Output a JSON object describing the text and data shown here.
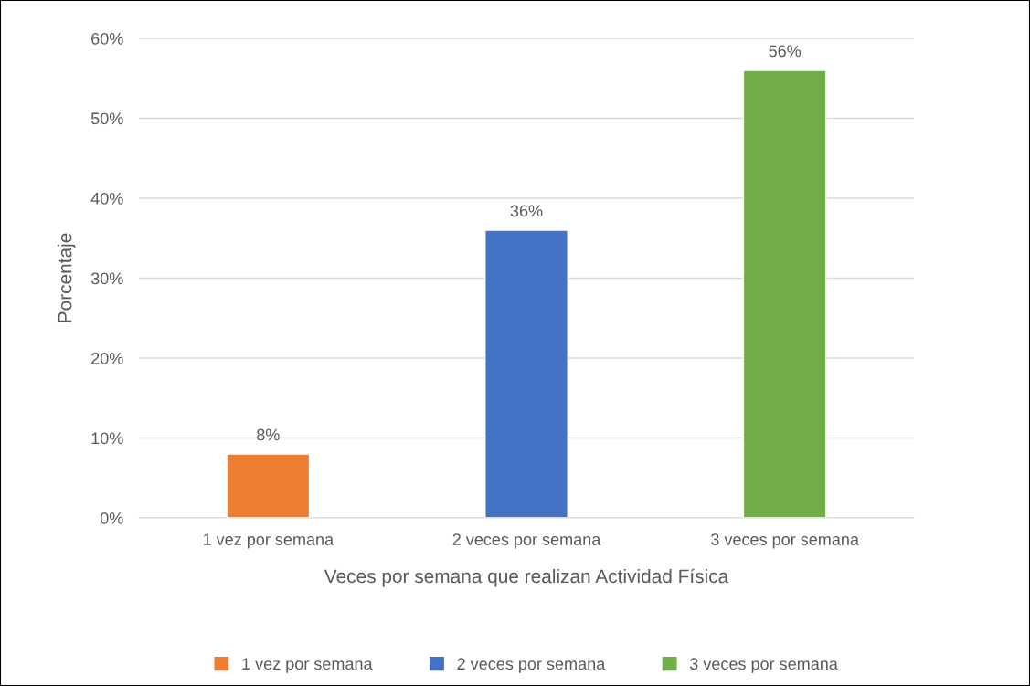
{
  "chart_data": {
    "type": "bar",
    "xlabel": "Veces por semana que realizan Actividad Física",
    "ylabel": "Porcentaje",
    "categories": [
      "1 vez por semana",
      "2 veces por semana",
      "3 veces por semana"
    ],
    "series": [
      {
        "name": "1 vez por semana",
        "color": "#ed7d31",
        "values": [
          8,
          null,
          null
        ],
        "value_labels": [
          "8%",
          null,
          null
        ]
      },
      {
        "name": "2 veces por semana",
        "color": "#4472c4",
        "values": [
          null,
          36,
          null
        ],
        "value_labels": [
          null,
          "36%",
          null
        ]
      },
      {
        "name": "3 veces por semana",
        "color": "#70ad47",
        "values": [
          null,
          null,
          56
        ],
        "value_labels": [
          null,
          null,
          "56%"
        ]
      }
    ],
    "ylim": [
      0,
      60
    ],
    "yticks": [
      {
        "value": 0,
        "label": "0%"
      },
      {
        "value": 10,
        "label": "10%"
      },
      {
        "value": 20,
        "label": "20%"
      },
      {
        "value": 30,
        "label": "30%"
      },
      {
        "value": 40,
        "label": "40%"
      },
      {
        "value": 50,
        "label": "50%"
      },
      {
        "value": 60,
        "label": "60%"
      }
    ],
    "grid": "y",
    "legend": "bottom"
  }
}
